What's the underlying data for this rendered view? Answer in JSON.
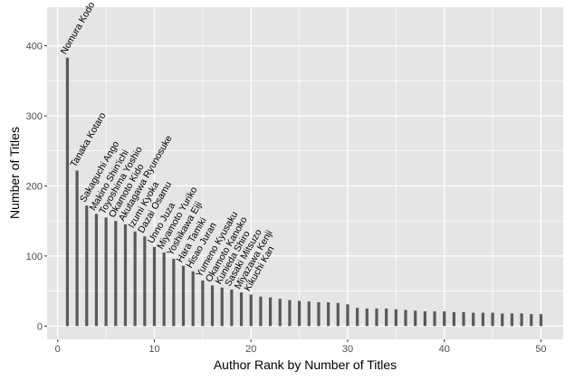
{
  "chart_data": {
    "type": "bar",
    "xlabel": "Author Rank by Number of Titles",
    "ylabel": "Number of Titles",
    "xlim": [
      -1.1,
      52.3
    ],
    "ylim": [
      -19,
      455
    ],
    "xticks": [
      0,
      10,
      20,
      30,
      40,
      50
    ],
    "yticks": [
      0,
      100,
      200,
      300,
      400
    ],
    "grid": true,
    "legend": "none",
    "colors": {
      "panel": "#e5e5e5",
      "grid": "#ffffff",
      "bar": "#595959"
    },
    "x": [
      1,
      2,
      3,
      4,
      5,
      6,
      7,
      8,
      9,
      10,
      11,
      12,
      13,
      14,
      15,
      16,
      17,
      18,
      19,
      20,
      21,
      22,
      23,
      24,
      25,
      26,
      27,
      28,
      29,
      30,
      31,
      32,
      33,
      34,
      35,
      36,
      37,
      38,
      39,
      40,
      41,
      42,
      43,
      44,
      45,
      46,
      47,
      48,
      49,
      50
    ],
    "values": [
      383,
      222,
      172,
      160,
      155,
      150,
      145,
      135,
      128,
      113,
      105,
      96,
      86,
      78,
      65,
      58,
      55,
      52,
      48,
      45,
      42,
      41,
      39,
      37,
      36,
      35,
      34,
      34,
      33,
      31,
      26,
      25,
      25,
      25,
      24,
      23,
      22,
      21,
      21,
      21,
      20,
      20,
      19,
      19,
      19,
      18,
      18,
      18,
      17,
      17
    ],
    "labels": [
      "Nomura Kodo",
      "Tanaka Kotaro",
      "Sakaguchi Ango",
      "Makino Shin'ichi",
      "Toyoshima Yoshio",
      "Okamoto Kido",
      "Akutagawa Ryunosuke",
      "Izumi Kyoka",
      "Dazai Osamu",
      "Unno Juza",
      "Miyamoto Yuriko",
      "Yoshikawa Eiji",
      "Hara Tamiki",
      "Hisao Juran",
      "Yumeno Kyusaku",
      "Okamoto Kanoko",
      "Kunieda Shiro",
      "Sasaki Mitsuzo",
      "Miyazawa Kenji",
      "Kikuchi Kan"
    ]
  }
}
